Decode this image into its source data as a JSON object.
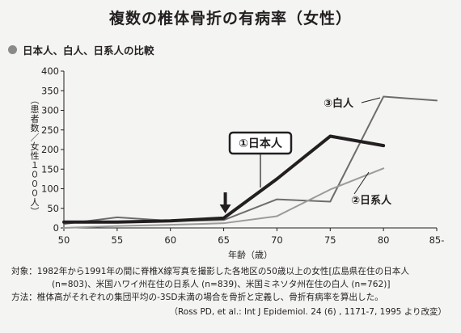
{
  "title": "複数の椎体骨折の有病率（女性）",
  "subtitle": "日本人、白人、日系人の比較",
  "chart_data": {
    "type": "line",
    "ylabel": "（患者数／女性１０００人）",
    "xlabel": "年齢（歳）",
    "x_ticks": [
      "50",
      "55",
      "60",
      "65",
      "70",
      "75",
      "80",
      "85-"
    ],
    "y_ticks": [
      "0",
      "50",
      "100",
      "150",
      "200",
      "250",
      "300",
      "350",
      "400"
    ],
    "ylim": [
      0,
      400
    ],
    "grid": false,
    "series": [
      {
        "name": "①日本人",
        "x": [
          50,
          55,
          60,
          65,
          70,
          75,
          80
        ],
        "y": [
          15,
          15,
          18,
          25,
          125,
          234,
          210
        ],
        "color": "#231f20",
        "width": 4
      },
      {
        "name": "③白人",
        "x": [
          50,
          55,
          60,
          65,
          70,
          75,
          80,
          85
        ],
        "y": [
          10,
          27,
          18,
          20,
          73,
          67,
          335,
          325
        ],
        "color": "#6d6d6d",
        "width": 2
      },
      {
        "name": "②日系人",
        "x": [
          50,
          55,
          60,
          65,
          70,
          75,
          80
        ],
        "y": [
          0,
          5,
          8,
          12,
          30,
          98,
          152
        ],
        "color": "#9b9b9b",
        "width": 2
      }
    ],
    "annotations": [
      {
        "text": "③白人"
      },
      {
        "text": "①日本人"
      },
      {
        "text": "②日系人"
      }
    ]
  },
  "notes": {
    "line1": "対象：1982年から1991年の間に脊椎X線写真を撮影した各地区の50歳以上の女性[広島県在住の日本人",
    "line2": "(n=803)、米国ハワイ州在住の日系人 (n=839)、米国ミネソタ州在住の白人 (n=762)]",
    "line3": "方法：椎体高がそれぞれの集団平均の-3SD未満の場合を骨折と定義し、骨折有病率を算出した。"
  },
  "source": "（Ross PD, et al.: Int J Epidemiol. 24 (6) , 1171-7, 1995 より改変）"
}
